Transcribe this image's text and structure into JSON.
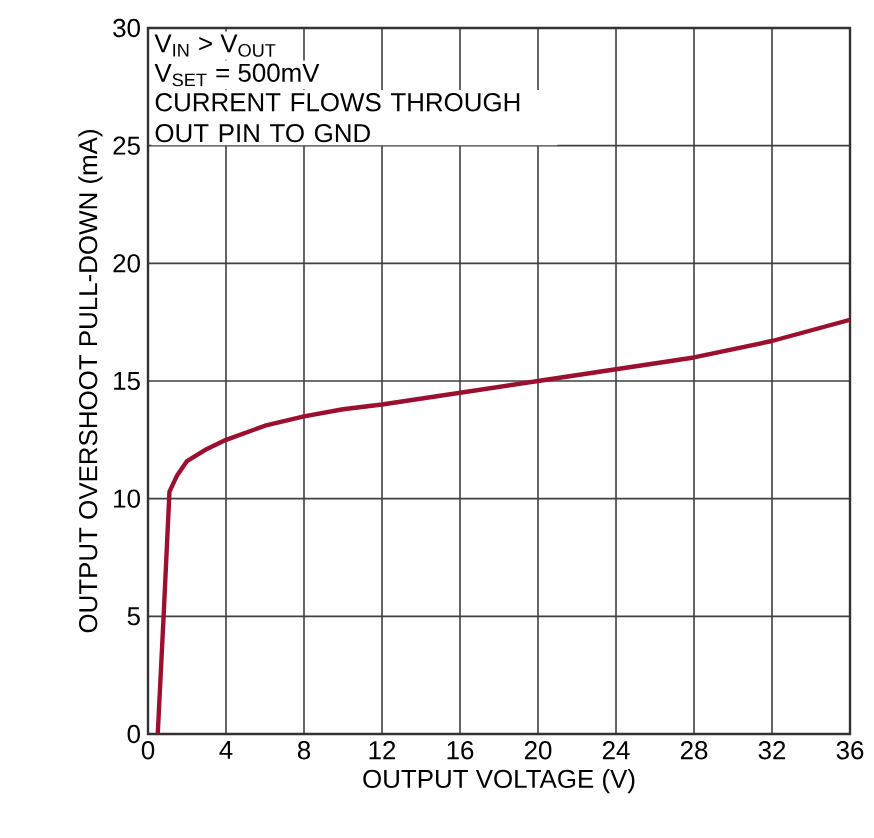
{
  "chart_data": {
    "type": "line",
    "xlabel": "OUTPUT VOLTAGE (V)",
    "ylabel": "OUTPUT OVERSHOOT PULL-DOWN (mA)",
    "annotations": [
      "V$_{IN}$ > V$_{OUT}$",
      "V$_{SET}$ = 500mV",
      "CURRENT FLOWS THROUGH OUT PIN TO GND"
    ],
    "x": [
      0.5,
      0.8,
      1.1,
      1.5,
      2,
      3,
      4,
      6,
      8,
      10,
      12,
      16,
      20,
      24,
      28,
      32,
      36
    ],
    "series": [
      {
        "color": "#9b0f2f",
        "values": [
          0,
          5,
          10.3,
          11,
          11.6,
          12.1,
          12.5,
          13.1,
          13.5,
          13.8,
          14,
          14.5,
          15,
          15.5,
          16,
          16.7,
          17.6
        ]
      }
    ],
    "xlim": [
      0,
      36
    ],
    "ylim": [
      0,
      30
    ],
    "xticks": [
      0,
      4,
      8,
      12,
      16,
      20,
      24,
      28,
      32,
      36
    ],
    "yticks": [
      0,
      5,
      10,
      15,
      20,
      25,
      30
    ],
    "grid": true
  }
}
